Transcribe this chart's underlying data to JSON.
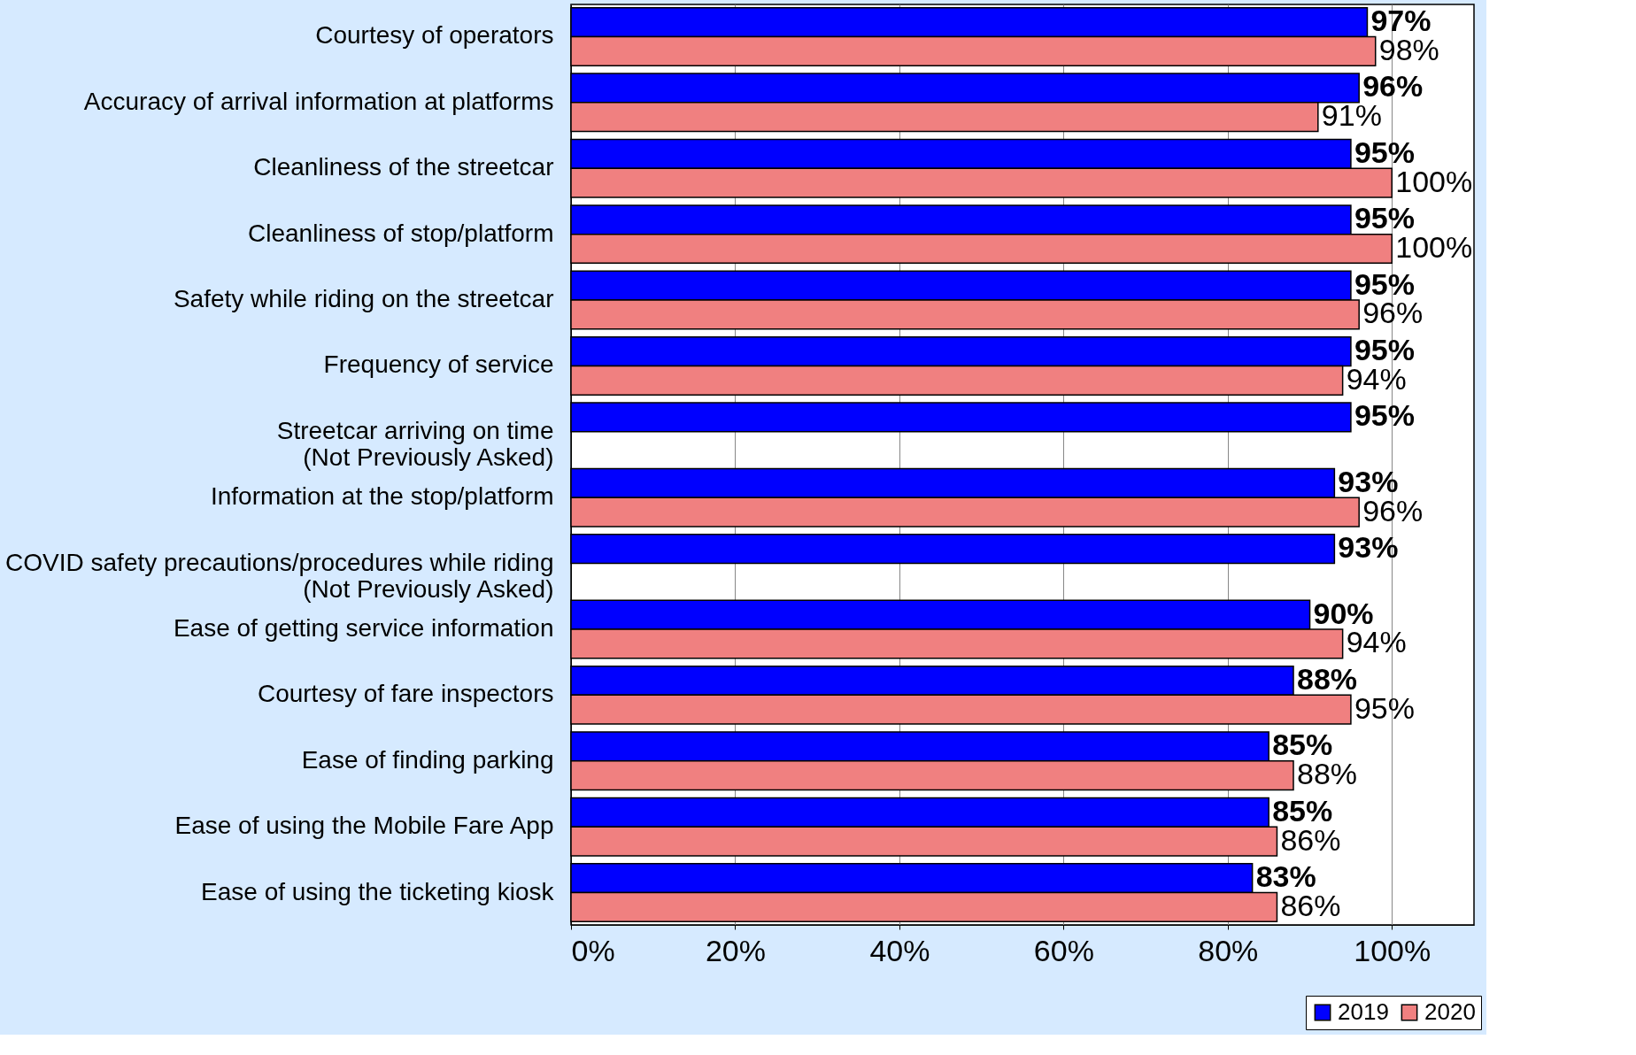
{
  "chart_data": {
    "type": "bar",
    "orientation": "horizontal",
    "categories": [
      "Courtesy of operators",
      "Accuracy of arrival information at platforms",
      "Cleanliness of the streetcar",
      "Cleanliness of stop/platform",
      "Safety while riding on the streetcar",
      "Frequency of service",
      "Streetcar arriving on time\n(Not Previously Asked)",
      "Information at the stop/platform",
      "COVID safety precautions/procedures while riding\n(Not Previously Asked)",
      "Ease of getting service information",
      "Courtesy of fare inspectors",
      "Ease of finding parking",
      "Ease of using the Mobile Fare App",
      "Ease of using the ticketing kiosk"
    ],
    "series": [
      {
        "name": "2019",
        "color": "#0000ff",
        "values": [
          97,
          96,
          95,
          95,
          95,
          95,
          95,
          93,
          93,
          90,
          88,
          85,
          85,
          83
        ],
        "value_labels": [
          "97%",
          "96%",
          "95%",
          "95%",
          "95%",
          "95%",
          "95%",
          "93%",
          "93%",
          "90%",
          "88%",
          "85%",
          "85%",
          "83%"
        ]
      },
      {
        "name": "2020",
        "color": "#f08080",
        "values": [
          98,
          91,
          100,
          100,
          96,
          94,
          null,
          96,
          null,
          94,
          95,
          88,
          86,
          86
        ],
        "value_labels": [
          "98%",
          "91%",
          "100%",
          "100%",
          "96%",
          "94%",
          null,
          "96%",
          null,
          "94%",
          "95%",
          "88%",
          "86%",
          "86%"
        ]
      }
    ],
    "xlim": [
      0,
      110
    ],
    "xticks": [
      {
        "value": 0,
        "label": "0%"
      },
      {
        "value": 20,
        "label": "20%"
      },
      {
        "value": 40,
        "label": "40%"
      },
      {
        "value": 60,
        "label": "60%"
      },
      {
        "value": 80,
        "label": "80%"
      },
      {
        "value": 100,
        "label": "100%"
      }
    ],
    "grid": "x",
    "legend": "bottom right"
  }
}
